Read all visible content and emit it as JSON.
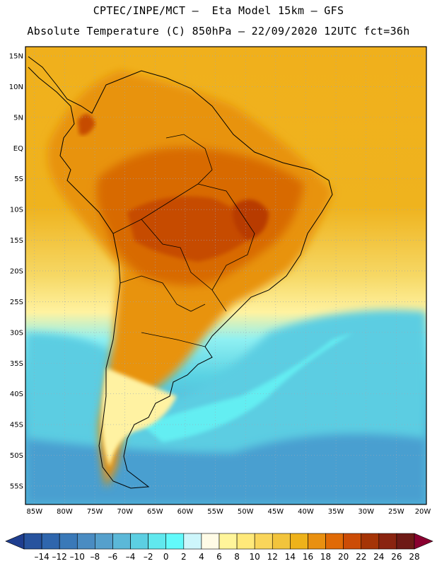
{
  "header": {
    "line1": "CPTEC/INPE/MCT –  Eta Model 15km – GFS",
    "line2": "Absolute Temperature (C) 850hPa – 22/09/2020 12UTC fct=36h"
  },
  "map": {
    "lat_ticks": [
      "15N",
      "10N",
      "5N",
      "EQ",
      "5S",
      "10S",
      "15S",
      "20S",
      "25S",
      "30S",
      "35S",
      "40S",
      "45S",
      "50S",
      "55S"
    ],
    "lon_ticks": [
      "85W",
      "80W",
      "75W",
      "70W",
      "65W",
      "60W",
      "55W",
      "50W",
      "45W",
      "40W",
      "35W",
      "30W",
      "25W",
      "20W"
    ],
    "lat_range": [
      -58,
      16.5
    ],
    "lon_range": [
      -86.5,
      -20
    ],
    "grid": "dotted"
  },
  "colorbar": {
    "labels": [
      "-14",
      "-12",
      "-10",
      "-8",
      "-6",
      "-4",
      "-2",
      "0",
      "2",
      "4",
      "6",
      "8",
      "10",
      "12",
      "14",
      "16",
      "18",
      "20",
      "22",
      "24",
      "26",
      "28"
    ],
    "colors": [
      "#1f3e8f",
      "#27539e",
      "#2f66ad",
      "#3a79b8",
      "#4a8cc2",
      "#55a0cc",
      "#5bb8d8",
      "#5ccfe2",
      "#60e8ee",
      "#62fafb",
      "#cdf6fb",
      "#fffbe6",
      "#fff59a",
      "#ffe97a",
      "#f9d55a",
      "#f2c43c",
      "#eeb21a",
      "#e99010",
      "#e06a06",
      "#cc4c06",
      "#a53406",
      "#8a2410",
      "#6e1a16",
      "#8a0030"
    ]
  }
}
